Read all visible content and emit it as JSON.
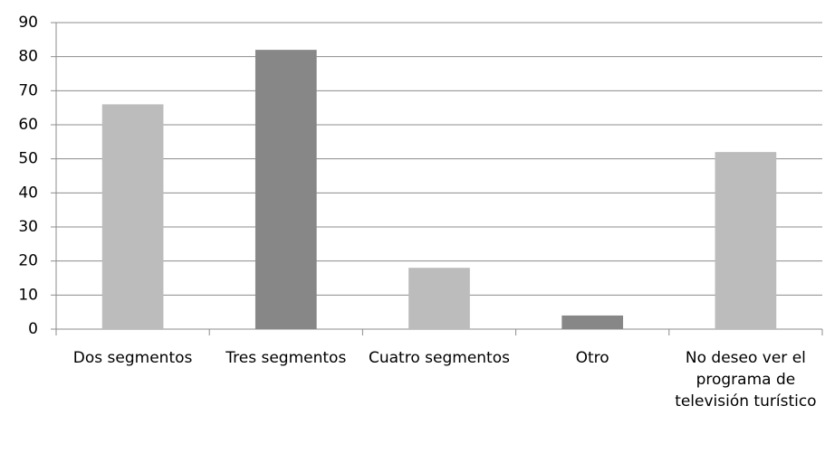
{
  "chart_data": {
    "type": "bar",
    "categories": [
      "Dos segmentos",
      "Tres segmentos",
      "Cuatro segmentos",
      "Otro",
      "No deseo ver el programa de televisión turístico"
    ],
    "values": [
      66,
      82,
      18,
      4,
      52
    ],
    "colors": [
      "#bcbcbc",
      "#878787",
      "#bcbcbc",
      "#878787",
      "#bcbcbc"
    ],
    "ylim": [
      0,
      90
    ],
    "yticks": [
      0,
      10,
      20,
      30,
      40,
      50,
      60,
      70,
      80,
      90
    ],
    "grid": true
  }
}
